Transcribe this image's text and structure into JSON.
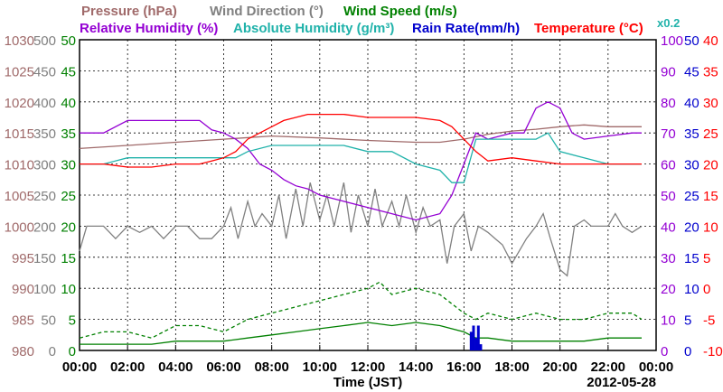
{
  "chart_data": {
    "type": "line",
    "date_label": "2012-05-28",
    "xlabel": "Time (JST)",
    "x_ticks": [
      "00:00",
      "02:00",
      "04:00",
      "06:00",
      "08:00",
      "10:00",
      "12:00",
      "14:00",
      "16:00",
      "18:00",
      "20:00",
      "22:00",
      "00:00"
    ],
    "x_hours": [
      0,
      24
    ],
    "scale_note": "x0.2",
    "legend": {
      "row1": [
        {
          "name": "Pressure (hPa)",
          "color": "#a06a6a"
        },
        {
          "name": "Wind Direction (°)",
          "color": "#808080"
        },
        {
          "name": "Wind Speed (m/s)",
          "color": "#008000"
        }
      ],
      "row2": [
        {
          "name": "Relative Humidity (%)",
          "color": "#9400d3"
        },
        {
          "name": "Absolute Humidity (g/m³)",
          "color": "#20b2aa"
        },
        {
          "name": "Rain Rate(mm/h)",
          "color": "#0000cd"
        },
        {
          "name": "Temperature (°C)",
          "color": "#ff0000"
        }
      ]
    },
    "axes": {
      "pressure": {
        "color": "#a06a6a",
        "ylim": [
          980,
          1030
        ],
        "ticks": [
          "1030",
          "1025",
          "1020",
          "1015",
          "1010",
          "1005",
          "1000",
          "995",
          "990",
          "985",
          "980"
        ]
      },
      "wind_direction": {
        "color": "#808080",
        "ylim": [
          0,
          500
        ],
        "ticks": [
          "500",
          "450",
          "400",
          "350",
          "300",
          "250",
          "200",
          "150",
          "100",
          "50",
          "0"
        ]
      },
      "wind_speed": {
        "color": "#008000",
        "ylim": [
          0,
          50
        ],
        "ticks": [
          "50",
          "45",
          "40",
          "35",
          "30",
          "25",
          "20",
          "15",
          "10",
          "5",
          "0"
        ]
      },
      "relative_humidity": {
        "color": "#9400d3",
        "ylim": [
          0,
          100
        ],
        "ticks": [
          "100",
          "90",
          "80",
          "70",
          "60",
          "50",
          "40",
          "30",
          "20",
          "10",
          "0"
        ]
      },
      "abs_humidity_rain": {
        "color": "#0000cd",
        "ylim": [
          0,
          50
        ],
        "ticks": [
          "50",
          "45",
          "40",
          "35",
          "30",
          "25",
          "20",
          "15",
          "10",
          "5",
          "0"
        ]
      },
      "temperature": {
        "color": "#ff0000",
        "ylim": [
          -10,
          40
        ],
        "ticks": [
          "40",
          "35",
          "30",
          "25",
          "20",
          "15",
          "10",
          "5",
          "0",
          "-5",
          "-10"
        ]
      }
    },
    "series": [
      {
        "key": "pressure",
        "color": "#a06a6a",
        "axis": "pressure",
        "x": [
          0,
          2,
          4,
          6,
          8,
          10,
          12,
          14,
          15,
          16,
          17,
          18,
          19,
          20,
          21,
          22,
          23.4
        ],
        "y": [
          1012.5,
          1013,
          1013.5,
          1014,
          1014.5,
          1014.2,
          1013.8,
          1013.5,
          1013.5,
          1014,
          1014.8,
          1015.3,
          1015.6,
          1016,
          1016.3,
          1016,
          1016
        ]
      },
      {
        "key": "wind_direction",
        "color": "#808080",
        "axis": "wind_direction",
        "x": [
          0,
          0.3,
          0.5,
          1,
          1.5,
          2,
          2.5,
          3,
          3.5,
          4,
          4.5,
          5,
          5.5,
          6,
          6.3,
          6.6,
          7,
          7.3,
          7.6,
          8,
          8.3,
          8.6,
          9,
          9.3,
          9.6,
          10,
          10.3,
          10.6,
          11,
          11.3,
          11.6,
          12,
          12.3,
          12.6,
          13,
          13.3,
          13.6,
          14,
          14.3,
          14.6,
          15,
          15.3,
          15.6,
          16,
          16.3,
          16.6,
          17,
          17.3,
          17.6,
          18,
          18.3,
          18.6,
          19,
          19.3,
          19.6,
          20,
          20.3,
          20.6,
          21,
          21.3,
          21.6,
          22,
          22.3,
          22.6,
          23,
          23.4
        ],
        "y": [
          160,
          200,
          200,
          200,
          180,
          200,
          190,
          200,
          180,
          200,
          200,
          180,
          180,
          200,
          230,
          180,
          240,
          200,
          220,
          200,
          250,
          180,
          260,
          200,
          270,
          210,
          250,
          200,
          270,
          190,
          250,
          200,
          260,
          200,
          240,
          200,
          250,
          190,
          230,
          200,
          210,
          140,
          200,
          220,
          160,
          200,
          190,
          180,
          170,
          140,
          160,
          180,
          200,
          220,
          180,
          130,
          120,
          200,
          210,
          200,
          200,
          200,
          220,
          200,
          190,
          200
        ]
      },
      {
        "key": "wind_speed_max",
        "color": "#008000",
        "axis": "wind_speed",
        "dash": "4,3",
        "x": [
          0,
          1,
          2,
          3,
          4,
          5,
          6,
          7,
          8,
          9,
          10,
          11,
          12,
          12.5,
          13,
          14,
          15,
          16,
          16.5,
          17,
          18,
          19,
          20,
          21,
          22,
          23,
          23.4
        ],
        "y": [
          2,
          3,
          3,
          2,
          4,
          4,
          3,
          5,
          6,
          7,
          8,
          9,
          10,
          11,
          9,
          10,
          9,
          6,
          5,
          6,
          5,
          6,
          5,
          5,
          6,
          6,
          5
        ]
      },
      {
        "key": "wind_speed",
        "color": "#008000",
        "axis": "wind_speed",
        "x": [
          0,
          1,
          2,
          3,
          4,
          5,
          6,
          7,
          8,
          9,
          10,
          11,
          12,
          13,
          14,
          15,
          16,
          16.5,
          17,
          18,
          19,
          20,
          21,
          22,
          23,
          23.4
        ],
        "y": [
          1,
          1,
          1,
          1,
          1.5,
          1.5,
          1.5,
          2,
          2.5,
          3,
          3.5,
          4,
          4.5,
          4,
          4.5,
          4,
          3,
          2,
          2,
          1.5,
          1.5,
          1.5,
          1.5,
          2,
          2,
          2
        ]
      },
      {
        "key": "relative_humidity",
        "color": "#9400d3",
        "axis": "relative_humidity",
        "x": [
          0,
          1,
          2,
          3,
          4,
          4.5,
          5,
          5.5,
          6,
          6.5,
          7,
          7.5,
          8,
          8.5,
          9,
          9.5,
          10,
          11,
          12,
          13,
          14,
          15,
          15.5,
          16,
          16.5,
          17,
          18,
          18.5,
          19,
          19.5,
          20,
          20.5,
          21,
          22,
          23,
          23.4
        ],
        "y": [
          70,
          70,
          74,
          74,
          74,
          74,
          74,
          71,
          70,
          68,
          65,
          60,
          58,
          55,
          53,
          52,
          50,
          48,
          46,
          44,
          42,
          44,
          50,
          60,
          70,
          68,
          70,
          70,
          78,
          80,
          78,
          70,
          68,
          69,
          70,
          70
        ]
      },
      {
        "key": "absolute_humidity",
        "color": "#20b2aa",
        "axis": "abs_humidity_rain",
        "x": [
          0,
          1,
          2,
          3,
          4,
          5,
          6,
          6.5,
          7,
          8,
          9,
          10,
          11,
          12,
          13,
          14,
          15,
          15.5,
          16,
          16.5,
          17,
          18,
          19,
          19.5,
          20,
          21,
          22,
          23,
          23.4
        ],
        "y": [
          30,
          30,
          31,
          31,
          31,
          31,
          31,
          31,
          32,
          33,
          33,
          33,
          33,
          32,
          32,
          30,
          29,
          27,
          27,
          34,
          34,
          34,
          34,
          35,
          32,
          31,
          30,
          30,
          30
        ]
      },
      {
        "key": "temperature",
        "color": "#ff0000",
        "axis": "temperature",
        "x": [
          0,
          1,
          2,
          3,
          4,
          5,
          5.5,
          6,
          6.5,
          7,
          7.5,
          8,
          8.5,
          9,
          9.5,
          10,
          11,
          12,
          13,
          14,
          15,
          15.5,
          16,
          16.5,
          17,
          18,
          19,
          20,
          20.5,
          21,
          22,
          23,
          23.4
        ],
        "y": [
          20,
          20,
          19.5,
          19.5,
          20,
          20,
          20.5,
          21,
          22,
          24,
          25,
          26,
          27,
          27.5,
          28,
          28,
          28,
          27.5,
          27.5,
          27.5,
          27,
          26,
          24,
          22,
          20.5,
          21,
          20.5,
          20,
          20,
          20,
          20,
          20,
          20
        ]
      },
      {
        "key": "rain_rate",
        "color": "#0000cd",
        "axis": "abs_humidity_rain",
        "type": "bar",
        "x": [
          16.3,
          16.4,
          16.5,
          16.6,
          16.7
        ],
        "y": [
          3,
          4,
          2,
          4,
          1
        ]
      }
    ]
  }
}
